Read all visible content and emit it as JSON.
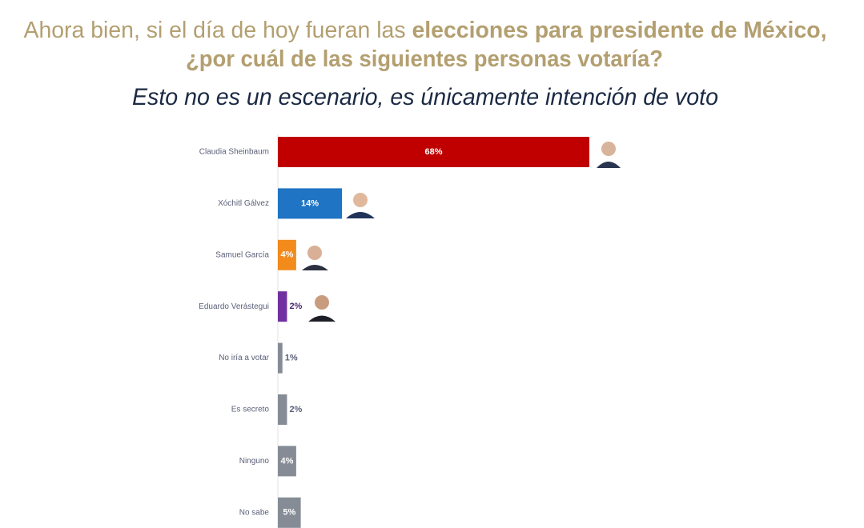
{
  "chart_data": {
    "type": "hbar",
    "title": [
      "Ahora bien, si el día de hoy fueran las ",
      "elecciones para presidente de México,",
      "¿por cuál de las siguientes personas votaría?"
    ],
    "subtitle": "Esto no es un escenario, es únicamente intención de voto",
    "categories": [
      "Claudia Sheinbaum",
      "Xóchitl Gálvez",
      "Samuel García",
      "Eduardo Verástegui",
      "No iría a votar",
      "Es secreto",
      "Ninguno",
      "No sabe"
    ],
    "values": [
      68,
      14,
      4,
      2,
      1,
      2,
      4,
      5
    ],
    "value_labels": [
      "68%",
      "14%",
      "4%",
      "2%",
      "1%",
      "2%",
      "4%",
      "5%"
    ],
    "colors": [
      "#c00000",
      "#1f74c4",
      "#f28a1c",
      "#7030a0",
      "#868c96",
      "#868c96",
      "#868c96",
      "#868c96"
    ]
  }
}
